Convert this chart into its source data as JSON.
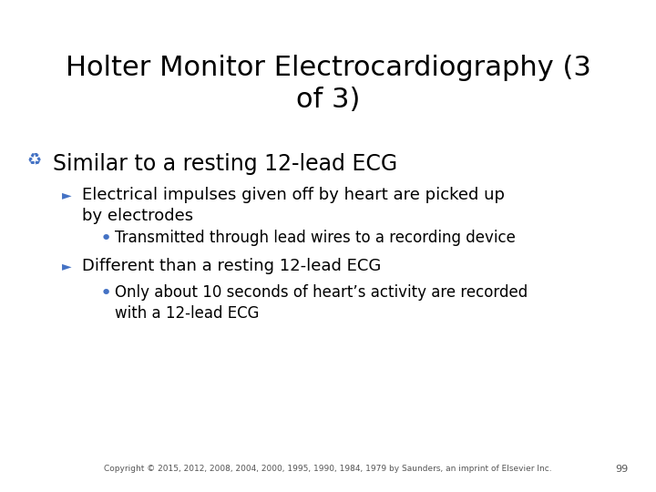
{
  "title": "Holter Monitor Electrocardiography (3\nof 3)",
  "title_fontsize": 22,
  "title_color": "#000000",
  "bg_color": "#ffffff",
  "bullet1": "Similar to a resting 12-lead ECG",
  "bullet1_color": "#000000",
  "bullet1_fontsize": 17,
  "sub1_text": "Electrical impulses given off by heart are picked up\nby electrodes",
  "sub1_color": "#000000",
  "sub1_fontsize": 13,
  "sub1b_text": "Transmitted through lead wires to a recording device",
  "sub1b_color": "#000000",
  "sub1b_fontsize": 12,
  "sub2_text": "Different than a resting 12-lead ECG",
  "sub2_color": "#000000",
  "sub2_fontsize": 13,
  "sub2b_text": "Only about 10 seconds of heart’s activity are recorded\nwith a 12-lead ECG",
  "sub2b_color": "#000000",
  "sub2b_fontsize": 12,
  "footer": "Copyright © 2015, 2012, 2008, 2004, 2000, 1995, 1990, 1984, 1979 by Saunders, an imprint of Elsevier Inc.",
  "footer_fontsize": 6.5,
  "footer_color": "#555555",
  "page_number": "99",
  "page_number_fontsize": 8,
  "page_number_color": "#555555",
  "arrow_color": "#4472c4",
  "triangle_color": "#4472c4",
  "bullet_dot_color": "#4472c4",
  "icon_fontsize": 13,
  "tri_fontsize": 10,
  "dot_fontsize": 16
}
